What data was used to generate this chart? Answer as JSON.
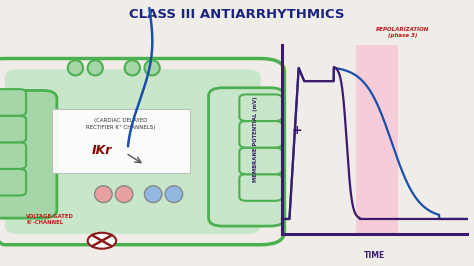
{
  "title": "CLASS III ANTIARRHYTHMICS",
  "title_color": "#1a237e",
  "title_fontsize": 9.5,
  "bg_color": "#f0ede8",
  "cell_fill": "#c8e6c9",
  "cell_border": "#4caf50",
  "cell_left_fill": "#a5d6a7",
  "graph_line_normal": "#3d1a6e",
  "graph_line_blocked": "#1a4faa",
  "axis_color": "#3d1a6e",
  "repol_fill": "#f8bbd0",
  "repol_label_color": "#b71c1c",
  "repol_label": "REPOLARIZATION\n(phase 3)",
  "time_label": "TIME",
  "ylabel": "MEMBRANE POTENTIAL (mV)",
  "plus_label": "+",
  "ikr_label": "IKr",
  "cardiac_label": "(CARDIAC DELAYED\nRECTIFIER K⁺ CHANNELS)",
  "voltage_label": "VOLTAGE-GATED\nK⁺-CHANNEL",
  "channel_pink": "#e8a0a0",
  "channel_blue": "#90b8e0",
  "channel_green": "#66bb6a",
  "channel_green_light": "#a5d6a7",
  "ikr_color": "#8b0000",
  "blue_line_color": "#1a4faa"
}
